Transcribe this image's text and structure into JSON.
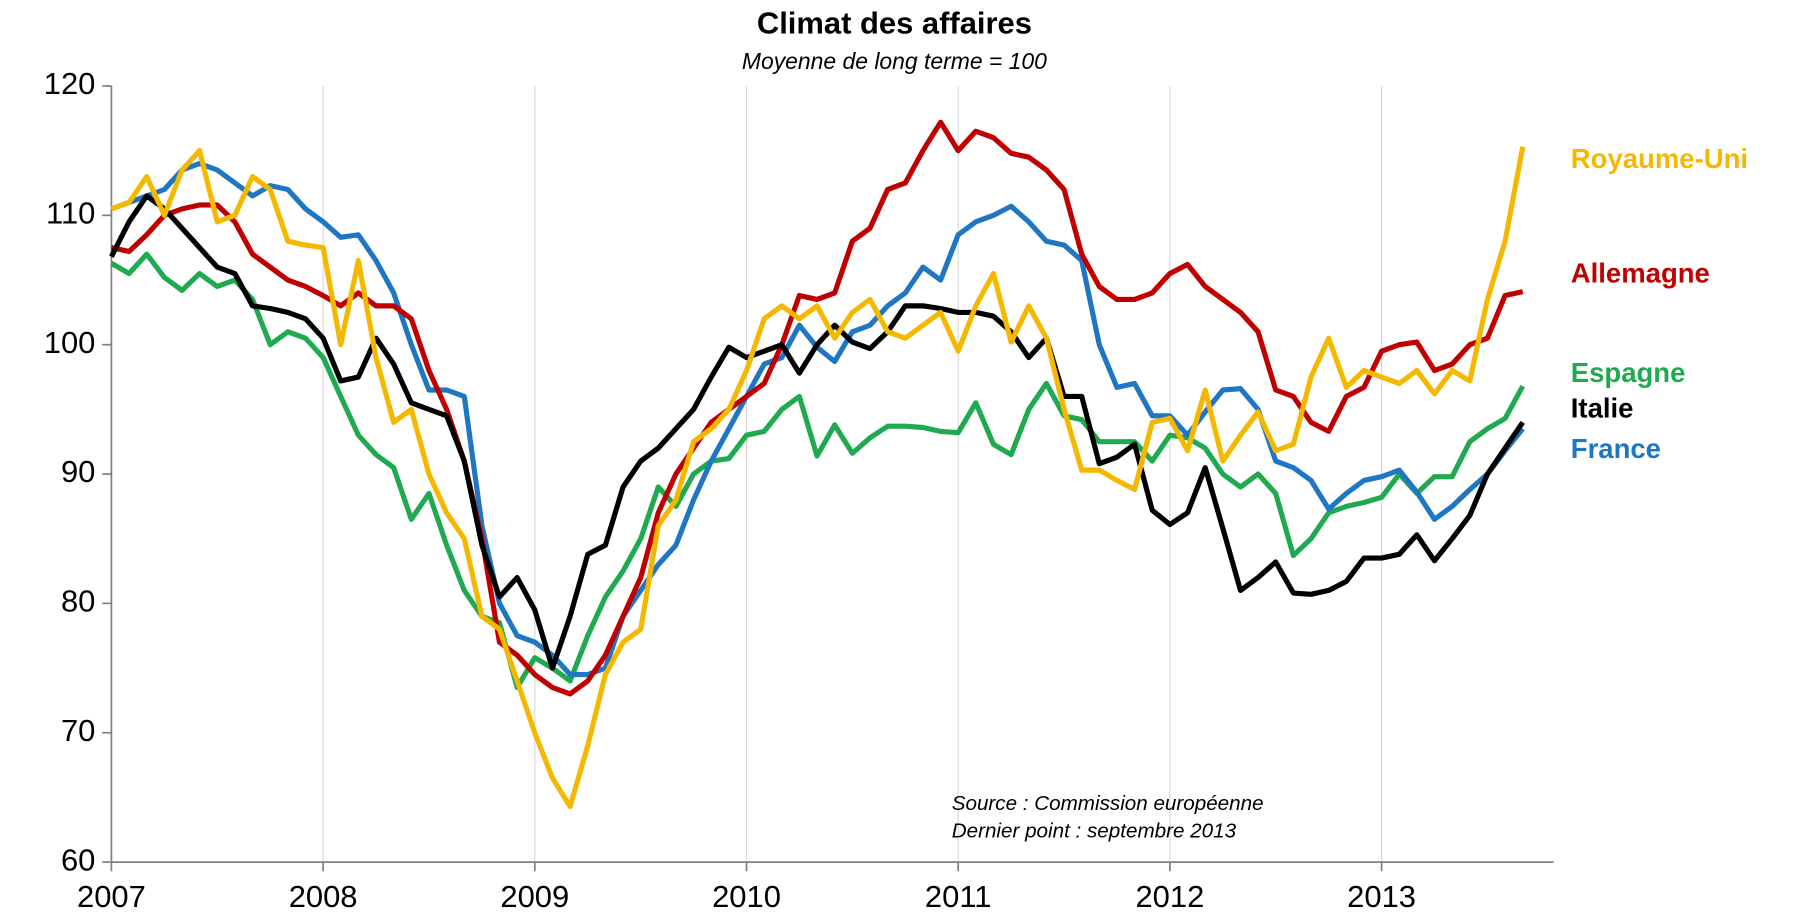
{
  "chart_data": {
    "type": "line",
    "title": "Climat des affaires",
    "subtitle": "Moyenne de long terme = 100",
    "annotations": [
      "Source :  Commission européenne",
      "Dernier point : septembre 2013"
    ],
    "categories": [
      "2007",
      null,
      null,
      null,
      null,
      null,
      null,
      null,
      null,
      null,
      null,
      null,
      "2008",
      null,
      null,
      null,
      null,
      null,
      null,
      null,
      null,
      null,
      null,
      null,
      "2009",
      null,
      null,
      null,
      null,
      null,
      null,
      null,
      null,
      null,
      null,
      null,
      "2010",
      null,
      null,
      null,
      null,
      null,
      null,
      null,
      null,
      null,
      null,
      null,
      "2011",
      null,
      null,
      null,
      null,
      null,
      null,
      null,
      null,
      null,
      null,
      null,
      "2012",
      null,
      null,
      null,
      null,
      null,
      null,
      null,
      null,
      null,
      null,
      null,
      "2013",
      null,
      null,
      null,
      null,
      null,
      null,
      null,
      null
    ],
    "ylim": [
      60,
      120
    ],
    "yticks": [
      60,
      70,
      80,
      90,
      100,
      110,
      120
    ],
    "grid": "x",
    "series": [
      {
        "name": "Royaume-Uni",
        "color": "#f5b800",
        "values": [
          110.5,
          111,
          113,
          110,
          113.5,
          115,
          109.5,
          110,
          113,
          112,
          108,
          107.7,
          107.5,
          100,
          106.5,
          99,
          94,
          95,
          90,
          87,
          85,
          79,
          78,
          74,
          70,
          66.5,
          64.3,
          69,
          74.5,
          77,
          78,
          86,
          88,
          92.5,
          93.5,
          95,
          98,
          102,
          103,
          102,
          103,
          100.5,
          102.5,
          103.5,
          101,
          100.5,
          101.5,
          102.5,
          99.5,
          103,
          105.5,
          100.2,
          103,
          100.5,
          95,
          90.3,
          90.3,
          89.5,
          88.8,
          94,
          94.3,
          91.8,
          96.5,
          91,
          93,
          94.8,
          91.8,
          92.3,
          97.5,
          100.5,
          96.7,
          98,
          97.5,
          97,
          98,
          96.2,
          98,
          97.2,
          103.5,
          108,
          115.3
        ]
      },
      {
        "name": "Allemagne",
        "color": "#c00000",
        "values": [
          107.5,
          107.2,
          108.5,
          110,
          110.5,
          110.8,
          110.8,
          109.5,
          107,
          106,
          105,
          104.5,
          103.8,
          103,
          104,
          103,
          103,
          102,
          98,
          95,
          91,
          85,
          77,
          76,
          74.5,
          73.5,
          73,
          74,
          76,
          79,
          82,
          87,
          90,
          92,
          94,
          95,
          96,
          97,
          100,
          103.8,
          103.5,
          104,
          108,
          109,
          112,
          112.5,
          115,
          117.2,
          115,
          116.5,
          116,
          114.8,
          114.5,
          113.5,
          112,
          107,
          104.5,
          103.5,
          103.5,
          104,
          105.5,
          106.2,
          104.5,
          103.5,
          102.5,
          101,
          96.5,
          96,
          94,
          93.3,
          96,
          96.7,
          99.5,
          100,
          100.2,
          98,
          98.5,
          100,
          100.5,
          103.8,
          104.1
        ]
      },
      {
        "name": "France",
        "color": "#1f77c4",
        "values": [
          110.5,
          111,
          111.5,
          112,
          113.5,
          114,
          113.5,
          112.5,
          111.5,
          112.3,
          112,
          110.5,
          109.5,
          108.3,
          108.5,
          106.5,
          104,
          100,
          96.5,
          96.5,
          96,
          86,
          80,
          77.5,
          77,
          76,
          74.5,
          74.5,
          75,
          79,
          81,
          83,
          84.5,
          88,
          91,
          93.5,
          96,
          98.5,
          99,
          101.5,
          99.8,
          98.7,
          101,
          101.5,
          103,
          104,
          106,
          105,
          108.5,
          109.5,
          110,
          110.7,
          109.5,
          108,
          107.7,
          106.5,
          100,
          96.7,
          97,
          94.5,
          94.5,
          93,
          94.8,
          96.5,
          96.6,
          95,
          91,
          90.5,
          89.5,
          87.3,
          88.5,
          89.5,
          89.8,
          90.3,
          88.6,
          86.5,
          87.5,
          88.8,
          90,
          91.8,
          93.5
        ]
      },
      {
        "name": "Espagne",
        "color": "#1faa50",
        "values": [
          106.3,
          105.5,
          107,
          105.2,
          104.2,
          105.5,
          104.5,
          105,
          103.5,
          100,
          101,
          100.5,
          99,
          96,
          93,
          91.5,
          90.5,
          86.5,
          88.5,
          84.5,
          81,
          79,
          78.5,
          73.5,
          75.8,
          75,
          74,
          77.5,
          80.5,
          82.5,
          85,
          89,
          87.5,
          90,
          91,
          91.2,
          93,
          93.3,
          95,
          96,
          91.4,
          93.8,
          91.6,
          92.8,
          93.7,
          93.7,
          93.6,
          93.3,
          93.2,
          95.5,
          92.3,
          91.5,
          95,
          97,
          94.5,
          94.2,
          92.5,
          92.5,
          92.5,
          91,
          93,
          92.8,
          92,
          90,
          89,
          90,
          88.5,
          83.7,
          85,
          87,
          87.5,
          87.8,
          88.2,
          90,
          88.5,
          89.8,
          89.8,
          92.5,
          93.5,
          94.3,
          96.8
        ]
      },
      {
        "name": "Italie",
        "color": "#000000",
        "values": [
          106.8,
          109.5,
          111.5,
          110.5,
          109,
          107.5,
          106,
          105.5,
          103,
          102.8,
          102.5,
          102,
          100.5,
          97.2,
          97.5,
          100.5,
          98.5,
          95.5,
          95,
          94.5,
          91,
          84.5,
          80.5,
          82,
          79.5,
          75,
          79,
          83.8,
          84.5,
          89,
          91,
          92,
          93.5,
          95,
          97.5,
          99.8,
          99,
          99.5,
          100,
          97.8,
          100,
          101.5,
          100.2,
          99.7,
          101,
          103,
          103,
          102.8,
          102.5,
          102.5,
          102.2,
          101,
          99,
          100.5,
          96,
          96,
          90.8,
          91.3,
          92.3,
          87.2,
          86.1,
          87,
          90.5,
          85.8,
          81,
          82,
          83.2,
          80.8,
          80.7,
          81,
          81.7,
          83.5,
          83.5,
          83.8,
          85.3,
          83.3,
          85,
          86.8,
          90,
          92,
          94
        ]
      }
    ]
  }
}
